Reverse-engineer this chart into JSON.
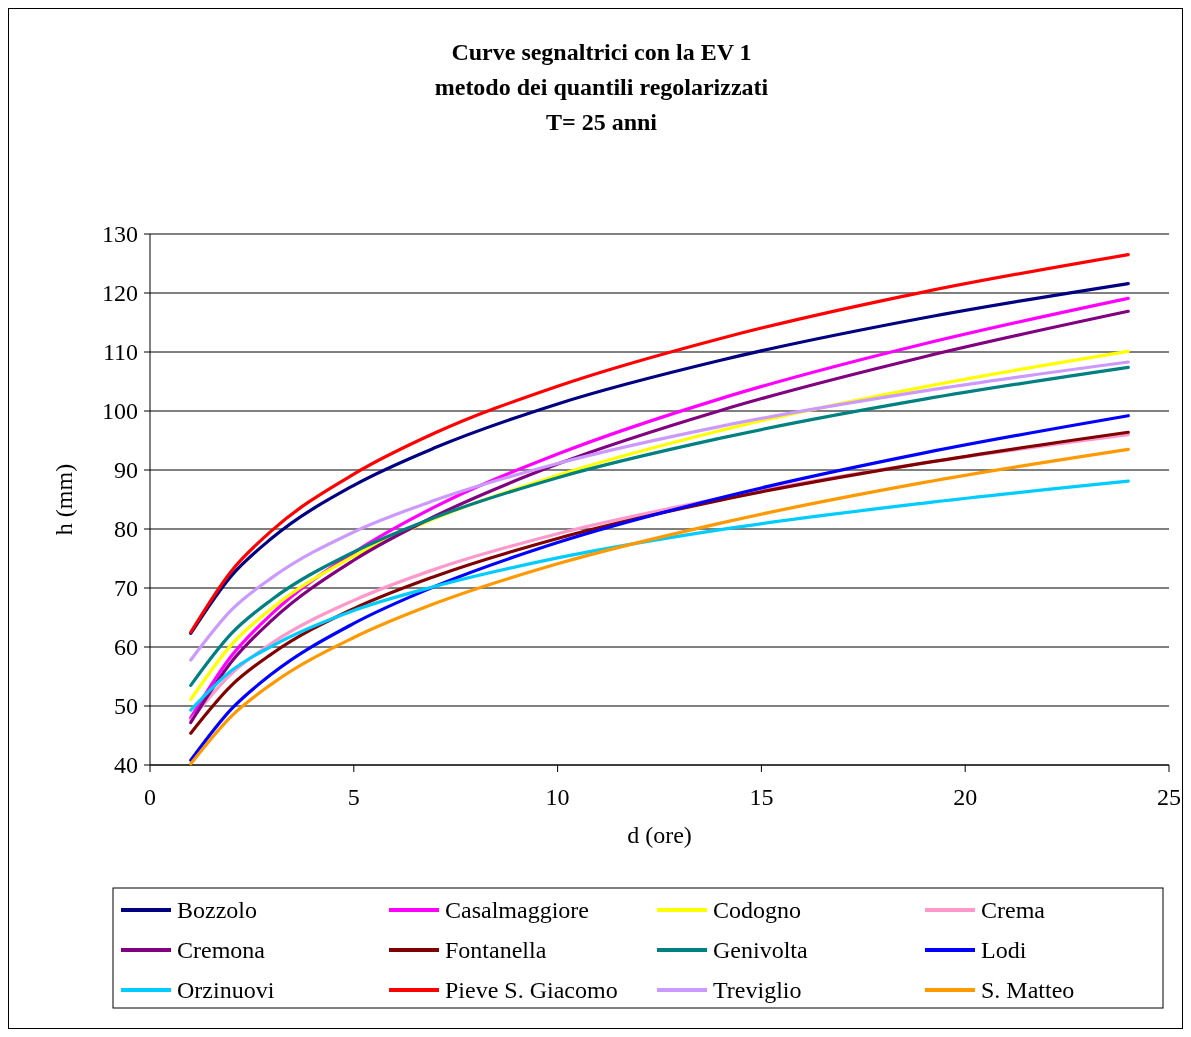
{
  "chart_data": {
    "type": "line",
    "title": "Curve segnaltrici con la EV 1\nmetodo dei quantili regolarizzati\nT= 25 anni",
    "xlabel": "d (ore)",
    "ylabel": "h (mm)",
    "x": [
      1,
      2,
      3,
      5,
      7,
      10,
      14,
      19,
      24
    ],
    "xlim": [
      0,
      25
    ],
    "xticks": [
      0,
      5,
      10,
      15,
      20,
      25
    ],
    "ylim": [
      40,
      130
    ],
    "yticks": [
      40,
      50,
      60,
      70,
      80,
      90,
      100,
      110,
      120,
      130
    ],
    "grid": "y",
    "legend": "bottom",
    "marker": "none",
    "line_style": "solid",
    "series": [
      {
        "name": "Bozzolo",
        "color": "#000080",
        "values": [
          62.3,
          72.1,
          78.5,
          87.4,
          93.8,
          101.2,
          108.6,
          115.8,
          121.6
        ]
      },
      {
        "name": "Casalmaggiore",
        "color": "#ff00ff",
        "values": [
          48,
          58.5,
          65.7,
          76.0,
          83.8,
          92.7,
          102.1,
          111.4,
          119.1
        ]
      },
      {
        "name": "Codogno",
        "color": "#ffff00",
        "values": [
          51.1,
          60.4,
          66.6,
          75.4,
          81.8,
          89.1,
          96.7,
          104.1,
          110.1
        ]
      },
      {
        "name": "Crema",
        "color": "#ff99cc",
        "values": [
          47.6,
          55.5,
          60.7,
          67.9,
          73.2,
          79.2,
          85.2,
          91.2,
          96.0
        ]
      },
      {
        "name": "Cremona",
        "color": "#800080",
        "values": [
          47.2,
          57.5,
          64.6,
          74.7,
          82.2,
          91.0,
          100.1,
          109.2,
          116.9
        ]
      },
      {
        "name": "Fontanella",
        "color": "#800000",
        "values": [
          45.4,
          53.5,
          58.9,
          66.5,
          72.0,
          78.4,
          84.9,
          91.2,
          96.4
        ]
      },
      {
        "name": "Genivolta",
        "color": "#008080",
        "values": [
          53.5,
          62.3,
          68.1,
          76.1,
          82.0,
          88.7,
          95.4,
          102.0,
          107.4
        ]
      },
      {
        "name": "Lodi",
        "color": "#0000ff",
        "values": [
          40.8,
          49.5,
          55.5,
          64.0,
          70.3,
          77.7,
          85.3,
          92.9,
          99.2
        ]
      },
      {
        "name": "Orzinuovi",
        "color": "#00ccff",
        "values": [
          49.3,
          56.0,
          60.2,
          66.2,
          70.3,
          75.1,
          79.9,
          84.4,
          88.1
        ]
      },
      {
        "name": "Pieve S. Giacomo",
        "color": "#ff0000",
        "values": [
          62.5,
          72.9,
          79.8,
          89.3,
          96.3,
          104.2,
          112.3,
          120.2,
          126.5
        ]
      },
      {
        "name": "Treviglio",
        "color": "#cc99ff",
        "values": [
          57.8,
          66.3,
          71.8,
          79.5,
          84.9,
          91.1,
          97.4,
          103.4,
          108.3
        ]
      },
      {
        "name": "S. Matteo",
        "color": "#ff9900",
        "values": [
          40.2,
          48.3,
          53.8,
          61.6,
          67.4,
          74.1,
          81.0,
          87.9,
          93.5
        ]
      }
    ]
  }
}
